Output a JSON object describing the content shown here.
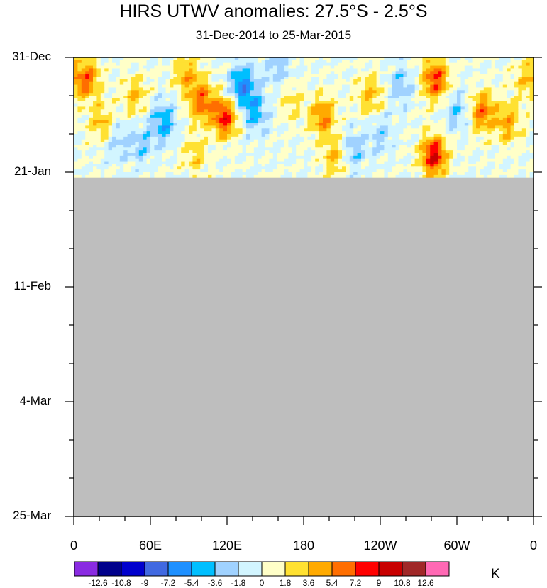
{
  "title": "HIRS UTWV anomalies: 27.5°S - 2.5°S",
  "subtitle": "31-Dec-2014 to 25-Mar-2015",
  "units": "K",
  "chart_data": {
    "type": "heatmap",
    "title": "HIRS UTWV anomalies: 27.5°S - 2.5°S",
    "subtitle": "31-Dec-2014 to 25-Mar-2015",
    "x_axis": {
      "ticks": [
        "0",
        "60E",
        "120E",
        "180",
        "120W",
        "60W",
        "0"
      ],
      "lon_range": [
        0,
        360
      ]
    },
    "y_axis": {
      "ticks": [
        "31-Dec",
        "21-Jan",
        "11-Feb",
        "4-Mar",
        "25-Mar"
      ],
      "reversed": true,
      "day_range": [
        0,
        84
      ]
    },
    "data_through_day": 22,
    "missing_region_color": "#bebebe",
    "colorbar": {
      "levels": [
        "-12.6",
        "-10.8",
        "-9",
        "-7.2",
        "-5.4",
        "-3.6",
        "-1.8",
        "0",
        "1.8",
        "3.6",
        "5.4",
        "7.2",
        "9",
        "10.8",
        "12.6"
      ],
      "colors": [
        "#8a2be2",
        "#00008b",
        "#0000cd",
        "#4169e1",
        "#1e90ff",
        "#00bfff",
        "#a0d2ff",
        "#d2f5ff",
        "#ffffc8",
        "#ffe132",
        "#ffaa00",
        "#ff6e00",
        "#ff0000",
        "#c80000",
        "#a02828",
        "#ff69b4"
      ]
    },
    "anomaly_features": [
      {
        "lon_center": 10,
        "day_center": 4,
        "value": 6.5
      },
      {
        "lon_center": 22,
        "day_center": 12,
        "value": 4.0
      },
      {
        "lon_center": 32,
        "day_center": 15,
        "value": -2.5
      },
      {
        "lon_center": 48,
        "day_center": 7,
        "value": 3.5
      },
      {
        "lon_center": 52,
        "day_center": 16,
        "value": -3.0
      },
      {
        "lon_center": 70,
        "day_center": 12,
        "value": -5.0
      },
      {
        "lon_center": 88,
        "day_center": 3,
        "value": 4.0
      },
      {
        "lon_center": 95,
        "day_center": 18,
        "value": 3.0
      },
      {
        "lon_center": 100,
        "day_center": 8,
        "value": 6.5
      },
      {
        "lon_center": 118,
        "day_center": 11,
        "value": 8.0
      },
      {
        "lon_center": 132,
        "day_center": 5,
        "value": -6.5
      },
      {
        "lon_center": 142,
        "day_center": 10,
        "value": -4.5
      },
      {
        "lon_center": 160,
        "day_center": 2,
        "value": -3.0
      },
      {
        "lon_center": 170,
        "day_center": 8,
        "value": 2.5
      },
      {
        "lon_center": 195,
        "day_center": 11,
        "value": 5.5
      },
      {
        "lon_center": 205,
        "day_center": 18,
        "value": 4.0
      },
      {
        "lon_center": 218,
        "day_center": 17,
        "value": -3.5
      },
      {
        "lon_center": 232,
        "day_center": 7,
        "value": 4.0
      },
      {
        "lon_center": 240,
        "day_center": 14,
        "value": -2.5
      },
      {
        "lon_center": 256,
        "day_center": 5,
        "value": -3.0
      },
      {
        "lon_center": 282,
        "day_center": 18,
        "value": 9.0
      },
      {
        "lon_center": 283,
        "day_center": 4,
        "value": 7.5
      },
      {
        "lon_center": 300,
        "day_center": 10,
        "value": -3.0
      },
      {
        "lon_center": 320,
        "day_center": 10,
        "value": 6.0
      },
      {
        "lon_center": 340,
        "day_center": 12,
        "value": 4.5
      },
      {
        "lon_center": 354,
        "day_center": 4,
        "value": 3.0
      }
    ]
  }
}
